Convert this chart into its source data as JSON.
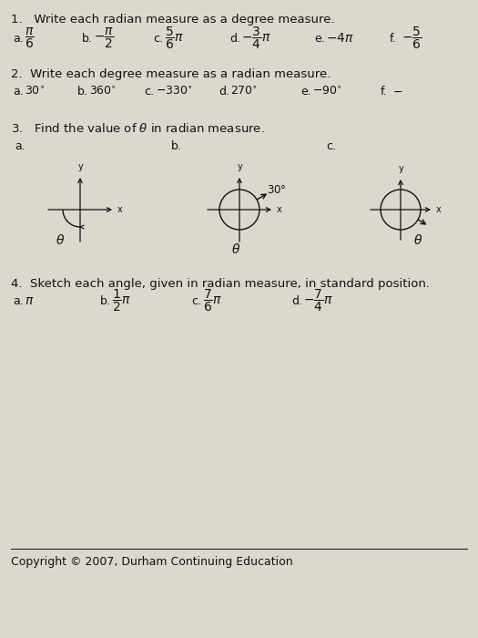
{
  "bg_color": "#ddd8ce",
  "text_color": "#111111",
  "title1": "1.   Write each radian measure as a degree measure.",
  "q1_labels": [
    "a.",
    "b.",
    "c.",
    "d.",
    "e.",
    "f."
  ],
  "q1_exprs": [
    "$\\dfrac{\\pi}{6}$",
    "$-\\dfrac{\\pi}{2}$",
    "$\\dfrac{5}{6}\\pi$",
    "$-\\dfrac{3}{4}\\pi$",
    "$-4\\pi$",
    "$-\\dfrac{5}{6}$"
  ],
  "title2": "2.  Write each degree measure as a radian measure.",
  "q2_labels": [
    "a.",
    "b.",
    "c.",
    "d.",
    "e.",
    "f."
  ],
  "q2_exprs": [
    "$30^{\\circ}$",
    "$360^{\\circ}$",
    "$-330^{\\circ}$",
    "$270^{\\circ}$",
    "$-90^{\\circ}$",
    "$-$"
  ],
  "title3": "3.   Find the value of $\\theta$ in radian measure.",
  "q3_labels": [
    "a.",
    "b.",
    "c."
  ],
  "title4": "4.  Sketch each angle, given in radian measure, in standard position.",
  "q4_labels": [
    "a.",
    "b.",
    "c.",
    "d."
  ],
  "q4_exprs": [
    "$\\pi$",
    "$\\dfrac{1}{2}\\pi$",
    "$\\dfrac{7}{6}\\pi$",
    "$-\\dfrac{7}{4}\\pi$"
  ],
  "copyright": "Copyright © 2007, Durham Continuing Education"
}
